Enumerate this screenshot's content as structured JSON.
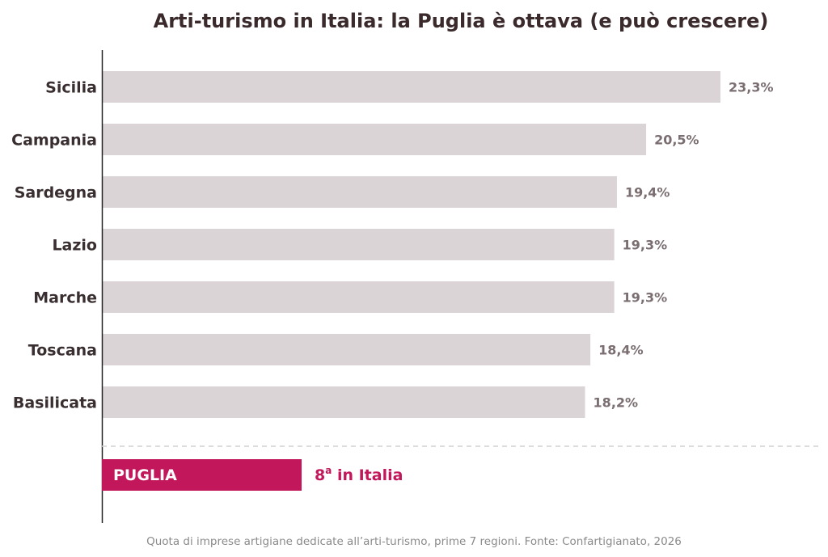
{
  "colors": {
    "bar": "#dbd4d6",
    "highlight": "#c2185b",
    "axis": "#222222",
    "separator": "#d0d0d0"
  },
  "chart_data": {
    "type": "bar",
    "orientation": "horizontal",
    "title": "Arti-turismo in Italia: la Puglia è ottava (e può crescere)",
    "categories": [
      "Sicilia",
      "Campania",
      "Sardegna",
      "Lazio",
      "Marche",
      "Toscana",
      "Basilicata"
    ],
    "values": [
      23.3,
      20.5,
      19.4,
      19.3,
      19.3,
      18.4,
      18.2
    ],
    "value_labels": [
      "23,3%",
      "20,5%",
      "19,4%",
      "19,3%",
      "19,3%",
      "18,4%",
      "18,2%"
    ],
    "xlim": [
      0,
      23.3
    ],
    "grid": false,
    "legend": "none",
    "highlight": {
      "label": "PUGLIA",
      "rank": "8",
      "rank_sup": "a",
      "rank_suffix": " in Italia"
    },
    "footnote": "Quota di imprese artigiane dedicate all’arti-turismo, prime 7 regioni. Fonte: Confartigianato, 2026"
  }
}
